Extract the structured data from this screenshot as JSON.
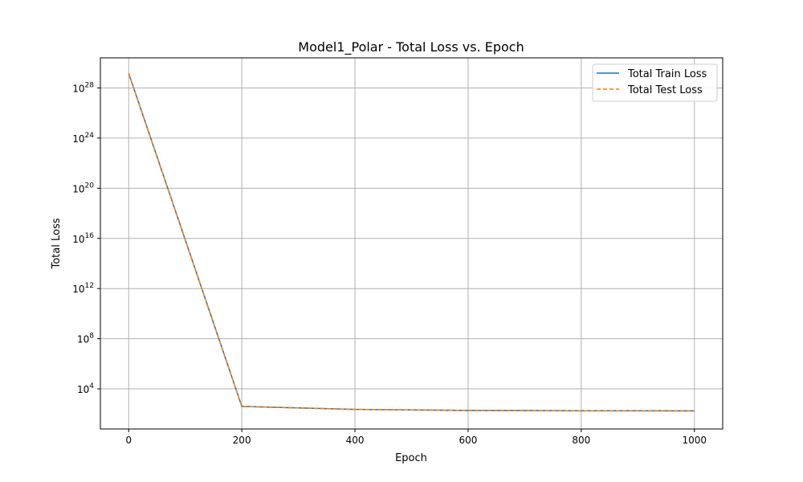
{
  "chart_data": {
    "type": "line",
    "title": "Model1_Polar - Total Loss vs. Epoch",
    "xlabel": "Epoch",
    "ylabel": "Total Loss",
    "xlim": [
      -50,
      1050
    ],
    "ylim_log10": [
      0.8,
      30.4
    ],
    "yscale": "log",
    "grid": true,
    "legend_position": "upper right",
    "x_ticks": [
      0,
      200,
      400,
      600,
      800,
      1000
    ],
    "y_ticks": [
      {
        "exp": 4,
        "base": "10",
        "sup": "4"
      },
      {
        "exp": 8,
        "base": "10",
        "sup": "8"
      },
      {
        "exp": 12,
        "base": "10",
        "sup": "12"
      },
      {
        "exp": 16,
        "base": "10",
        "sup": "16"
      },
      {
        "exp": 20,
        "base": "10",
        "sup": "20"
      },
      {
        "exp": 24,
        "base": "10",
        "sup": "24"
      },
      {
        "exp": 28,
        "base": "10",
        "sup": "28"
      }
    ],
    "x": [
      0,
      200,
      400,
      600,
      800,
      1000
    ],
    "series": [
      {
        "name": "Total Train Loss",
        "color": "#1f77b4",
        "style": "solid",
        "values": [
          1.5e+29,
          400,
          230,
          190,
          180,
          175
        ]
      },
      {
        "name": "Total Test Loss",
        "color": "#ff7f0e",
        "style": "dashed",
        "values": [
          1.5e+29,
          400,
          230,
          190,
          180,
          175
        ]
      }
    ]
  }
}
